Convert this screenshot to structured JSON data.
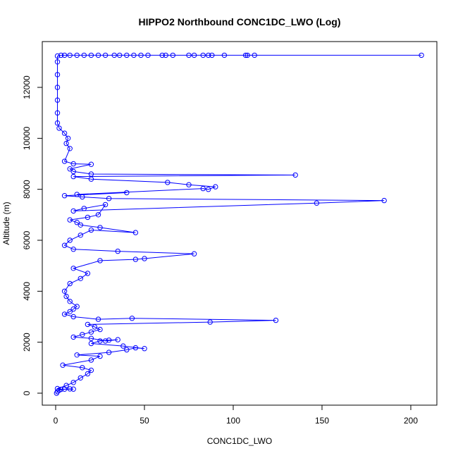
{
  "chart_data": {
    "type": "scatter",
    "title": "HIPPO2 Northbound CONC1DC_LWO (Log)",
    "xlabel": "CONC1DC_LWO",
    "ylabel": "Altitude (m)",
    "xlim": [
      0,
      210
    ],
    "ylim": [
      0,
      13300
    ],
    "x_ticks": [
      0,
      50,
      100,
      150,
      200
    ],
    "y_ticks": [
      0,
      2000,
      4000,
      6000,
      8000,
      10000,
      12000
    ],
    "grid": false,
    "legend": "none",
    "marker": "open-circle",
    "connected": true,
    "color": "#0000ff",
    "series": [
      {
        "points": [
          [
            0.5,
            0
          ],
          [
            1,
            60
          ],
          [
            2,
            120
          ],
          [
            5,
            160
          ],
          [
            8,
            170
          ],
          [
            10,
            160
          ],
          [
            3,
            150
          ],
          [
            1,
            180
          ],
          [
            6,
            300
          ],
          [
            10,
            420
          ],
          [
            14,
            600
          ],
          [
            18,
            760
          ],
          [
            20,
            900
          ],
          [
            15,
            1000
          ],
          [
            4,
            1100
          ],
          [
            20,
            1300
          ],
          [
            25,
            1450
          ],
          [
            12,
            1500
          ],
          [
            30,
            1600
          ],
          [
            40,
            1700
          ],
          [
            45,
            1780
          ],
          [
            50,
            1750
          ],
          [
            38,
            1850
          ],
          [
            20,
            1950
          ],
          [
            25,
            2050
          ],
          [
            30,
            2080
          ],
          [
            35,
            2100
          ],
          [
            28,
            2050
          ],
          [
            20,
            2150
          ],
          [
            10,
            2200
          ],
          [
            15,
            2300
          ],
          [
            20,
            2400
          ],
          [
            25,
            2500
          ],
          [
            22,
            2600
          ],
          [
            18,
            2700
          ],
          [
            87,
            2790
          ],
          [
            124,
            2860
          ],
          [
            43,
            2940
          ],
          [
            24,
            2900
          ],
          [
            10,
            3000
          ],
          [
            5,
            3100
          ],
          [
            8,
            3200
          ],
          [
            10,
            3300
          ],
          [
            12,
            3400
          ],
          [
            8,
            3600
          ],
          [
            6,
            3800
          ],
          [
            5,
            4000
          ],
          [
            8,
            4300
          ],
          [
            14,
            4500
          ],
          [
            18,
            4700
          ],
          [
            10,
            4900
          ],
          [
            25,
            5200
          ],
          [
            45,
            5250
          ],
          [
            50,
            5280
          ],
          [
            78,
            5470
          ],
          [
            35,
            5570
          ],
          [
            10,
            5650
          ],
          [
            5,
            5800
          ],
          [
            8,
            6000
          ],
          [
            14,
            6200
          ],
          [
            20,
            6400
          ],
          [
            45,
            6300
          ],
          [
            25,
            6500
          ],
          [
            14,
            6600
          ],
          [
            12,
            6700
          ],
          [
            8,
            6800
          ],
          [
            18,
            6900
          ],
          [
            24,
            7000
          ],
          [
            28,
            7400
          ],
          [
            16,
            7250
          ],
          [
            10,
            7150
          ],
          [
            147,
            7460
          ],
          [
            185,
            7560
          ],
          [
            30,
            7640
          ],
          [
            15,
            7700
          ],
          [
            5,
            7750
          ],
          [
            40,
            7870
          ],
          [
            12,
            7800
          ],
          [
            83,
            8030
          ],
          [
            86,
            8000
          ],
          [
            90,
            8100
          ],
          [
            75,
            8180
          ],
          [
            63,
            8270
          ],
          [
            20,
            8400
          ],
          [
            10,
            8500
          ],
          [
            135,
            8560
          ],
          [
            20,
            8600
          ],
          [
            10,
            8700
          ],
          [
            8,
            8800
          ],
          [
            20,
            8980
          ],
          [
            10,
            9000
          ],
          [
            5,
            9100
          ],
          [
            8,
            9600
          ],
          [
            6,
            9800
          ],
          [
            7,
            10000
          ],
          [
            5,
            10200
          ],
          [
            2,
            10400
          ],
          [
            1,
            10600
          ],
          [
            1,
            11000
          ],
          [
            1,
            11500
          ],
          [
            1,
            12000
          ],
          [
            1,
            12500
          ],
          [
            1,
            13000
          ],
          [
            1,
            13230
          ],
          [
            3,
            13260
          ],
          [
            5,
            13260
          ],
          [
            8,
            13260
          ],
          [
            12,
            13260
          ],
          [
            16,
            13260
          ],
          [
            20,
            13260
          ],
          [
            24,
            13260
          ],
          [
            28,
            13260
          ],
          [
            33,
            13260
          ],
          [
            36,
            13260
          ],
          [
            40,
            13260
          ],
          [
            44,
            13260
          ],
          [
            48,
            13260
          ],
          [
            52,
            13260
          ],
          [
            60,
            13260
          ],
          [
            62,
            13260
          ],
          [
            66,
            13260
          ],
          [
            75,
            13260
          ],
          [
            78,
            13260
          ],
          [
            83,
            13260
          ],
          [
            86,
            13260
          ],
          [
            88,
            13260
          ],
          [
            95,
            13260
          ],
          [
            107,
            13260
          ],
          [
            108,
            13260
          ],
          [
            112,
            13260
          ],
          [
            206,
            13260
          ]
        ]
      }
    ]
  }
}
